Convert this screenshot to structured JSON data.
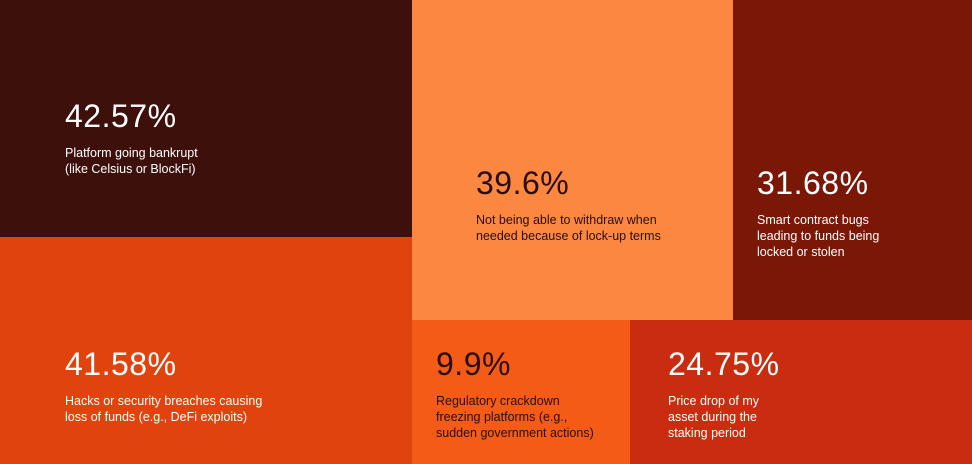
{
  "tiles": [
    {
      "value": "42.57%",
      "lines": [
        "Platform going bankrupt",
        "(like Celsius or BlockFi)"
      ]
    },
    {
      "value": "39.6%",
      "lines": [
        "Not being able to withdraw when",
        "needed because of lock-up terms"
      ]
    },
    {
      "value": "31.68%",
      "lines": [
        "Smart contract bugs",
        "leading to funds being",
        "locked or stolen"
      ]
    },
    {
      "value": "41.58%",
      "lines": [
        "Hacks or security breaches causing",
        "loss of funds (e.g., DeFi exploits)"
      ]
    },
    {
      "value": "9.9%",
      "lines": [
        "Regulatory crackdown",
        "freezing platforms (e.g.,",
        "sudden government actions)"
      ]
    },
    {
      "value": "24.75%",
      "lines": [
        "Price drop of my",
        "asset during the",
        "staking period"
      ]
    }
  ]
}
